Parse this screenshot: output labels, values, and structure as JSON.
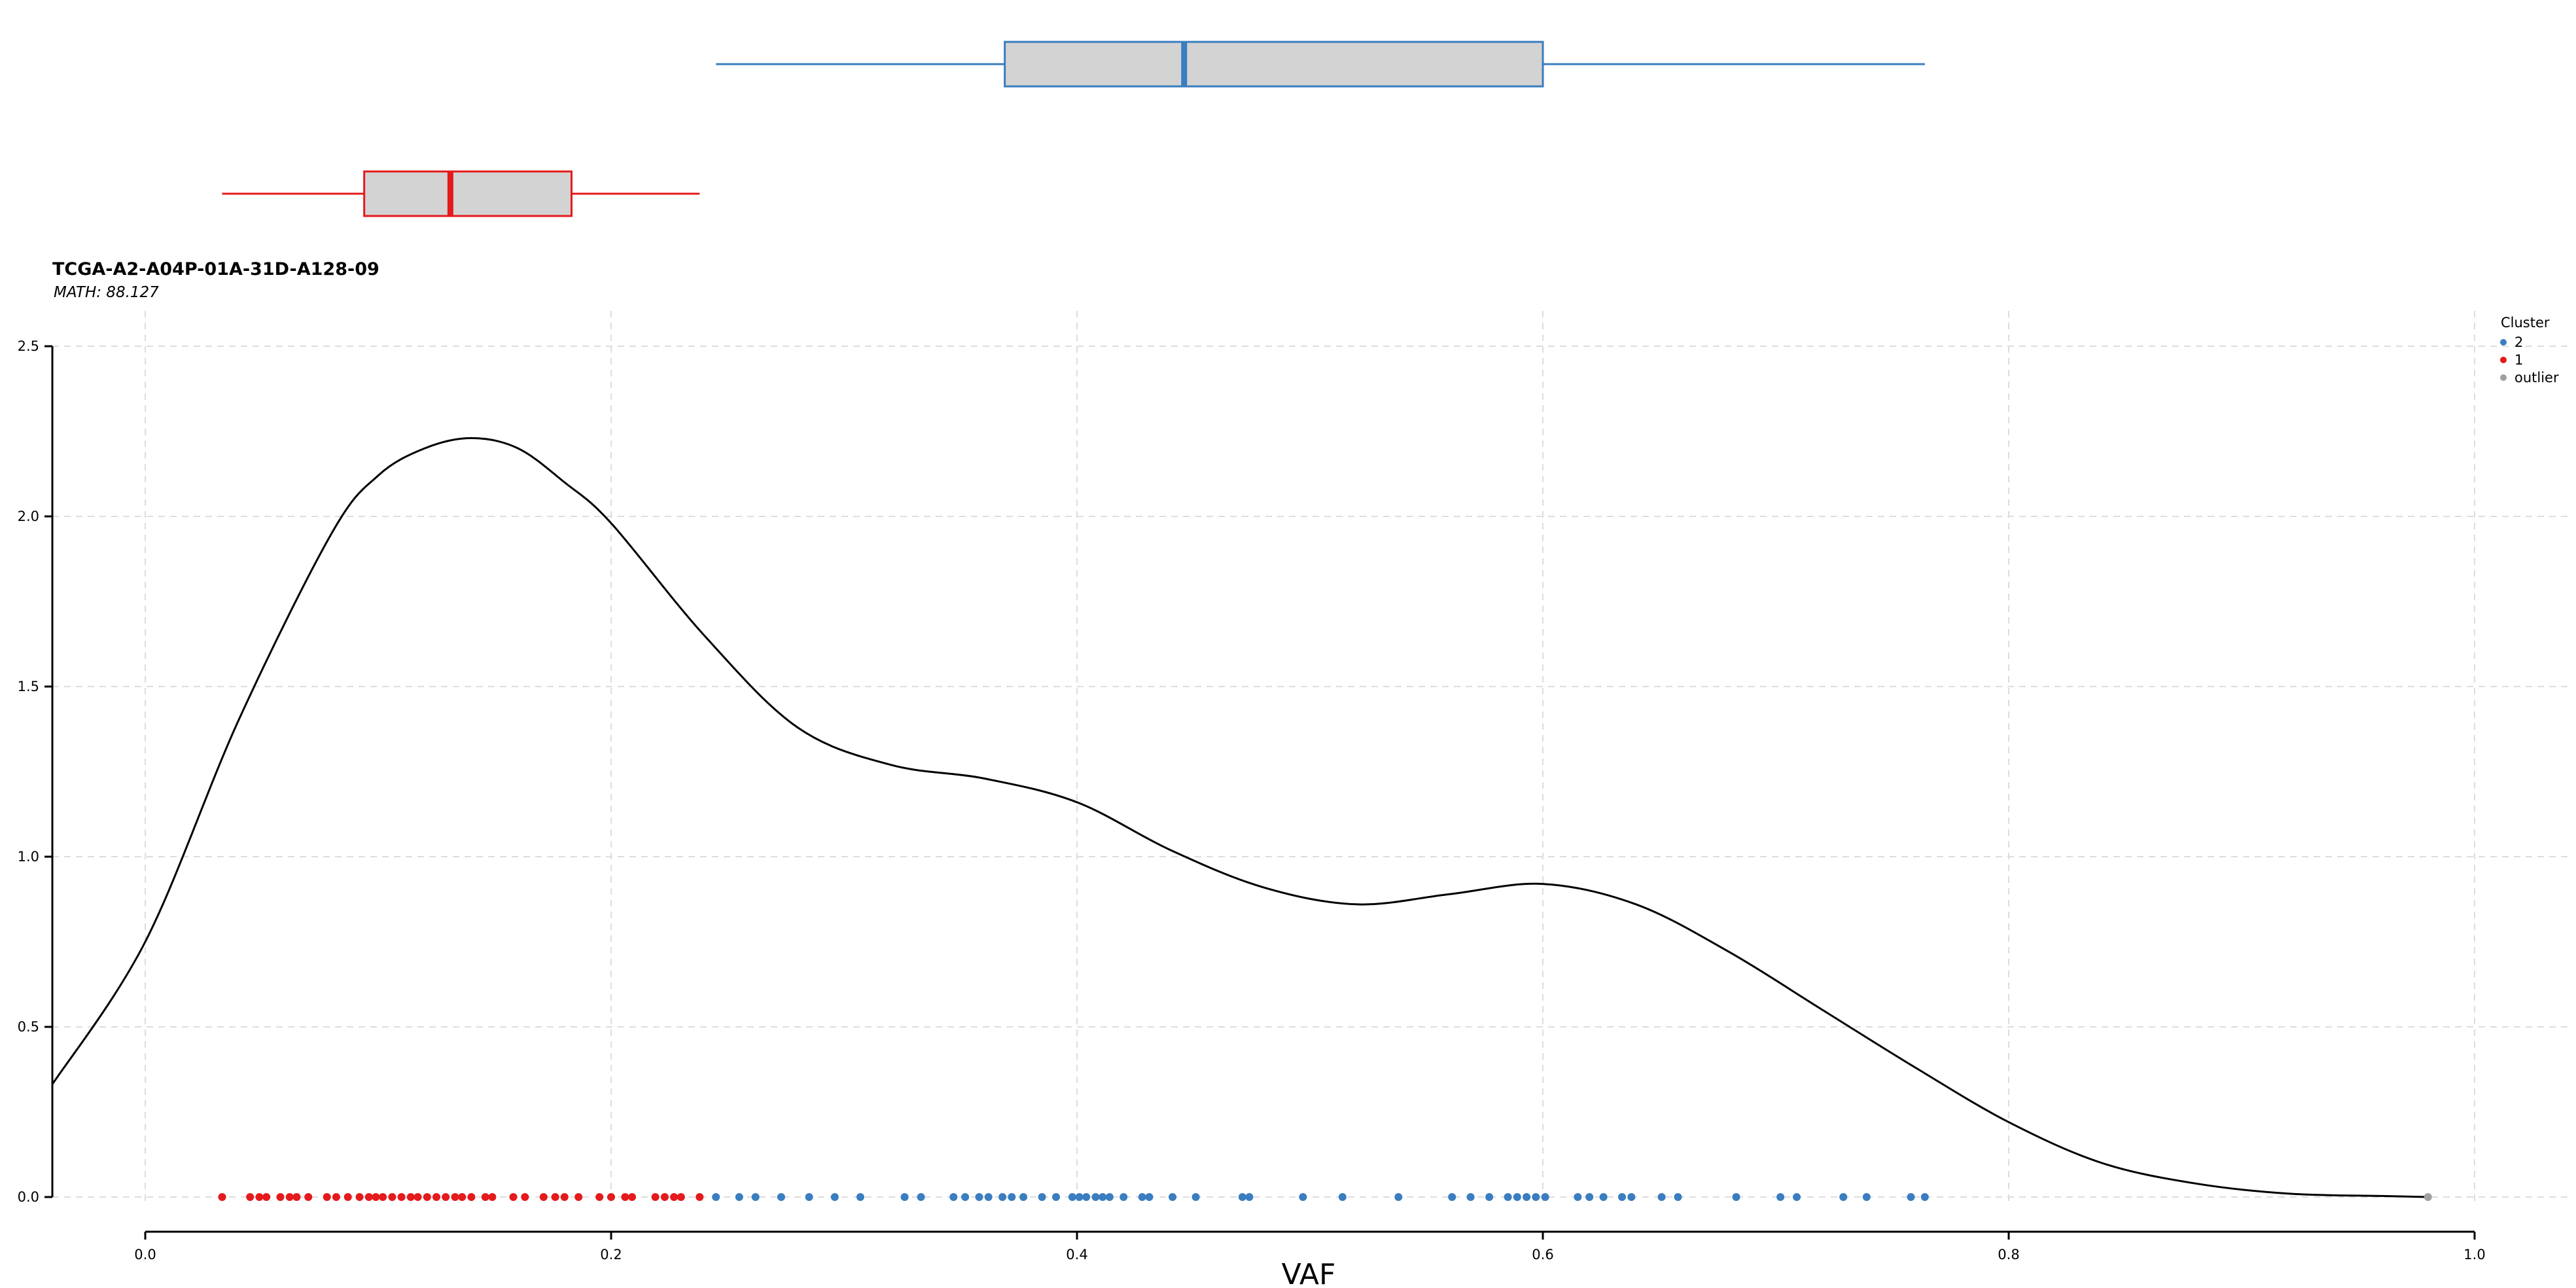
{
  "chart_data": {
    "type": "density",
    "title": "TCGA-A2-A04P-01A-31D-A128-09",
    "subtitle": "MATH: 88.127",
    "xlabel": "VAF",
    "ylabel": "",
    "xlim": [
      0.0,
      1.0
    ],
    "ylim": [
      0.0,
      2.5
    ],
    "x_ticks": [
      "0.0",
      "0.2",
      "0.4",
      "0.6",
      "0.8",
      "1.0"
    ],
    "y_ticks": [
      "0.0",
      "0.5",
      "1.0",
      "1.5",
      "2.0",
      "2.5"
    ],
    "grid": true,
    "legend": {
      "title": "Cluster",
      "placement": "top-right",
      "entries": [
        {
          "label": "2",
          "color": "#3a7dc0"
        },
        {
          "label": "1",
          "color": "#e41a1c"
        },
        {
          "label": "outlier",
          "color": "#a0a0a0"
        }
      ]
    },
    "density_curve": {
      "x": [
        -0.04,
        0.0,
        0.04,
        0.08,
        0.1,
        0.12,
        0.14,
        0.16,
        0.18,
        0.2,
        0.24,
        0.28,
        0.32,
        0.36,
        0.4,
        0.44,
        0.48,
        0.52,
        0.56,
        0.6,
        0.64,
        0.68,
        0.72,
        0.76,
        0.8,
        0.84,
        0.88,
        0.92,
        0.96,
        0.98
      ],
      "y": [
        0.33,
        0.75,
        1.4,
        1.95,
        2.12,
        2.2,
        2.23,
        2.2,
        2.1,
        1.98,
        1.65,
        1.38,
        1.27,
        1.23,
        1.16,
        1.02,
        0.91,
        0.86,
        0.89,
        0.92,
        0.86,
        0.72,
        0.55,
        0.38,
        0.22,
        0.1,
        0.04,
        0.01,
        0.003,
        0.0
      ]
    },
    "series": [
      {
        "name": "1",
        "color": "#e41a1c",
        "values": [
          0.033,
          0.045,
          0.049,
          0.052,
          0.058,
          0.062,
          0.065,
          0.07,
          0.078,
          0.082,
          0.087,
          0.092,
          0.096,
          0.099,
          0.102,
          0.106,
          0.11,
          0.114,
          0.117,
          0.121,
          0.125,
          0.129,
          0.133,
          0.136,
          0.14,
          0.146,
          0.149,
          0.158,
          0.163,
          0.171,
          0.176,
          0.18,
          0.186,
          0.195,
          0.2,
          0.206,
          0.209,
          0.219,
          0.223,
          0.227,
          0.23,
          0.238
        ]
      },
      {
        "name": "2",
        "color": "#3a7dc0",
        "values": [
          0.245,
          0.255,
          0.262,
          0.273,
          0.285,
          0.296,
          0.307,
          0.326,
          0.333,
          0.347,
          0.352,
          0.358,
          0.362,
          0.368,
          0.372,
          0.377,
          0.385,
          0.391,
          0.398,
          0.401,
          0.404,
          0.408,
          0.411,
          0.414,
          0.42,
          0.428,
          0.431,
          0.441,
          0.451,
          0.471,
          0.474,
          0.497,
          0.514,
          0.538,
          0.561,
          0.569,
          0.577,
          0.585,
          0.589,
          0.593,
          0.597,
          0.601,
          0.615,
          0.62,
          0.626,
          0.634,
          0.638,
          0.651,
          0.658,
          0.683,
          0.702,
          0.709,
          0.729,
          0.739,
          0.758,
          0.764
        ]
      },
      {
        "name": "outlier",
        "color": "#a0a0a0",
        "values": [
          0.98
        ]
      }
    ],
    "boxplots": [
      {
        "cluster": "2",
        "color": "#3a7dc0",
        "whisker_low": 0.245,
        "q1": 0.369,
        "median": 0.446,
        "q3": 0.6,
        "whisker_high": 0.764
      },
      {
        "cluster": "1",
        "color": "#e41a1c",
        "whisker_low": 0.033,
        "q1": 0.094,
        "median": 0.131,
        "q3": 0.183,
        "whisker_high": 0.238
      }
    ]
  }
}
